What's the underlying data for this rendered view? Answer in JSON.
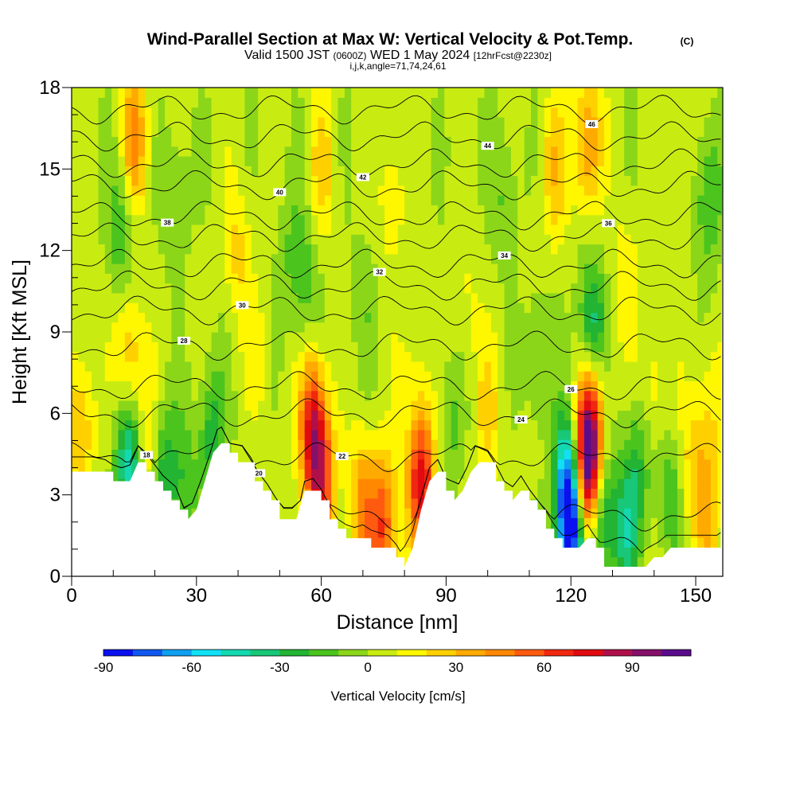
{
  "title": {
    "main": "Wind-Parallel Section at Max W: Vertical Velocity & Pot.Temp.",
    "copyright": "(C)",
    "valid_prefix": "Valid 1500 JST",
    "valid_utc": "(0600Z)",
    "valid_date": "WED 1 May 2024",
    "forecast": "[12hrFcst@2230z]",
    "indices": "i,j,k,angle=71,74,24,61"
  },
  "chart_data": {
    "type": "heatmap",
    "xlabel": "Distance [nm]",
    "ylabel": "Height [Kft MSL]",
    "xlim": [
      0,
      156.5
    ],
    "ylim": [
      0,
      18
    ],
    "x_ticks": [
      "0",
      "30",
      "60",
      "90",
      "120",
      "150"
    ],
    "y_ticks": [
      "0",
      "3",
      "6",
      "9",
      "12",
      "15",
      "18"
    ],
    "colorbar": {
      "label": "Vertical Velocity [cm/s]",
      "range": [
        -90,
        110
      ],
      "step": 10,
      "tick_labels": [
        "-90",
        "-60",
        "-30",
        "0",
        "30",
        "60",
        "90"
      ],
      "colors": [
        "#0a10f0",
        "#1058f0",
        "#10a0f0",
        "#12e0f5",
        "#14d8b0",
        "#18c878",
        "#22b432",
        "#4cc41e",
        "#8cd61a",
        "#c8ec12",
        "#fff700",
        "#ffd000",
        "#ffaa00",
        "#ff8800",
        "#ff5a10",
        "#f02810",
        "#e00a10",
        "#b0104a",
        "#84106a",
        "#5a0c8c"
      ]
    },
    "terrain_kft": [
      [
        0,
        3.9
      ],
      [
        5,
        3.9
      ],
      [
        8,
        3.8
      ],
      [
        10,
        3.6
      ],
      [
        12,
        3.5
      ],
      [
        14,
        3.6
      ],
      [
        16,
        4.3
      ],
      [
        19,
        3.8
      ],
      [
        22,
        3.2
      ],
      [
        25,
        2.8
      ],
      [
        27,
        2.0
      ],
      [
        29,
        2.2
      ],
      [
        31,
        3.0
      ],
      [
        33,
        3.9
      ],
      [
        35,
        4.9
      ],
      [
        36,
        5.0
      ],
      [
        38,
        4.4
      ],
      [
        41,
        4.3
      ],
      [
        43,
        3.8
      ],
      [
        45,
        3.3
      ],
      [
        47,
        2.9
      ],
      [
        49,
        2.4
      ],
      [
        51,
        2.0
      ],
      [
        53,
        2.0
      ],
      [
        55,
        2.3
      ],
      [
        56,
        3.0
      ],
      [
        58,
        3.1
      ],
      [
        60,
        2.7
      ],
      [
        62,
        2.1
      ],
      [
        64,
        1.6
      ],
      [
        66,
        1.4
      ],
      [
        68,
        1.3
      ],
      [
        70,
        1.4
      ],
      [
        72,
        1.2
      ],
      [
        74,
        1.1
      ],
      [
        76,
        1.0
      ],
      [
        78,
        0.6
      ],
      [
        79,
        0.3
      ],
      [
        80,
        0.5
      ],
      [
        82,
        1.2
      ],
      [
        84,
        2.4
      ],
      [
        86,
        3.5
      ],
      [
        88,
        3.8
      ],
      [
        90,
        3.1
      ],
      [
        93,
        2.9
      ],
      [
        95,
        3.5
      ],
      [
        97,
        4.3
      ],
      [
        100,
        4.1
      ],
      [
        102,
        3.6
      ],
      [
        104,
        3.0
      ],
      [
        106,
        2.8
      ],
      [
        108,
        3.2
      ],
      [
        110,
        2.7
      ],
      [
        112,
        2.3
      ],
      [
        114,
        1.9
      ],
      [
        116,
        1.4
      ],
      [
        118,
        1.0
      ],
      [
        120,
        1.0
      ],
      [
        122,
        1.2
      ],
      [
        124,
        1.4
      ],
      [
        126,
        0.9
      ],
      [
        128,
        0.3
      ],
      [
        131,
        0.3
      ],
      [
        135,
        0.3
      ],
      [
        137,
        0.3
      ],
      [
        139,
        0.5
      ],
      [
        141,
        0.7
      ],
      [
        143,
        1.0
      ],
      [
        145,
        1.0
      ],
      [
        147,
        1.0
      ],
      [
        150,
        1.0
      ],
      [
        153,
        1.0
      ],
      [
        156.5,
        1.0
      ]
    ],
    "velocity_cells": [
      {
        "x": 2,
        "ht": 5.5,
        "w": 30
      },
      {
        "x": 12,
        "ht": 13,
        "w": -25
      },
      {
        "x": 14,
        "ht": 8,
        "w": 30
      },
      {
        "x": 15,
        "ht": 16,
        "w": 40
      },
      {
        "x": 14,
        "ht": 4.2,
        "w": -55
      },
      {
        "x": 18,
        "ht": 4.5,
        "w": 25
      },
      {
        "x": 22,
        "ht": 3.8,
        "w": -30
      },
      {
        "x": 27,
        "ht": 3.4,
        "w": -20
      },
      {
        "x": 34,
        "ht": 5.2,
        "w": -30
      },
      {
        "x": 25,
        "ht": 14,
        "w": -15
      },
      {
        "x": 40,
        "ht": 12,
        "w": 20
      },
      {
        "x": 45,
        "ht": 8,
        "w": 10
      },
      {
        "x": 52,
        "ht": 12,
        "w": -10
      },
      {
        "x": 58,
        "ht": 5.5,
        "w": 70
      },
      {
        "x": 60,
        "ht": 3.3,
        "w": 55
      },
      {
        "x": 56,
        "ht": 11,
        "w": -20
      },
      {
        "x": 60,
        "ht": 15,
        "w": 20
      },
      {
        "x": 75,
        "ht": 1.8,
        "w": 55
      },
      {
        "x": 70,
        "ht": 2.5,
        "w": 40
      },
      {
        "x": 70,
        "ht": 10,
        "w": -10
      },
      {
        "x": 77,
        "ht": 14,
        "w": 15
      },
      {
        "x": 84,
        "ht": 3.5,
        "w": 75
      },
      {
        "x": 82,
        "ht": 8,
        "w": 10
      },
      {
        "x": 91,
        "ht": 5.5,
        "w": -15
      },
      {
        "x": 95,
        "ht": 10,
        "w": 10
      },
      {
        "x": 100,
        "ht": 6,
        "w": 20
      },
      {
        "x": 104,
        "ht": 14,
        "w": -15
      },
      {
        "x": 112,
        "ht": 8,
        "w": -15
      },
      {
        "x": 116,
        "ht": 15,
        "w": 25
      },
      {
        "x": 120,
        "ht": 1.8,
        "w": -85
      },
      {
        "x": 119,
        "ht": 3.5,
        "w": -50
      },
      {
        "x": 124,
        "ht": 3.9,
        "w": 105
      },
      {
        "x": 125,
        "ht": 6,
        "w": 50
      },
      {
        "x": 125,
        "ht": 9,
        "w": -45
      },
      {
        "x": 124,
        "ht": 16,
        "w": 40
      },
      {
        "x": 127,
        "ht": 2.3,
        "w": -45
      },
      {
        "x": 133,
        "ht": 1.5,
        "w": -35
      },
      {
        "x": 136,
        "ht": 4.0,
        "w": -25
      },
      {
        "x": 133,
        "ht": 11,
        "w": 15
      },
      {
        "x": 140,
        "ht": 7,
        "w": 15
      },
      {
        "x": 144,
        "ht": 3,
        "w": -20
      },
      {
        "x": 149,
        "ht": 4.2,
        "w": 20
      },
      {
        "x": 153,
        "ht": 2.2,
        "w": 25
      },
      {
        "x": 153,
        "ht": 6,
        "w": 15
      },
      {
        "x": 153,
        "ht": 14,
        "w": -25
      },
      {
        "x": 145,
        "ht": 16,
        "w": 10
      }
    ],
    "theta_contours": [
      {
        "level": 18,
        "label": "18",
        "ht_mid": 1.1
      },
      {
        "level": 20,
        "label": "20",
        "ht_mid": 2.2
      },
      {
        "level": 22,
        "label": "22",
        "ht_mid": 4.4
      },
      {
        "level": 24,
        "label": "24",
        "ht_mid": 6.0
      },
      {
        "level": 26,
        "label": "26",
        "ht_mid": 7.0
      },
      {
        "level": 28,
        "label": "28",
        "ht_mid": 8.5
      },
      {
        "level": 30,
        "label": "30",
        "ht_mid": 9.8
      },
      {
        "level": 32,
        "label": "32",
        "ht_mid": 10.7
      },
      {
        "level": 34,
        "label": "34",
        "ht_mid": 11.5
      },
      {
        "level": 36,
        "label": "36",
        "ht_mid": 12.5
      },
      {
        "level": 38,
        "label": "38",
        "ht_mid": 13.3
      },
      {
        "level": 40,
        "label": "40",
        "ht_mid": 14.4
      },
      {
        "level": 42,
        "label": "42",
        "ht_mid": 15.2
      },
      {
        "level": 44,
        "label": "44",
        "ht_mid": 16.2
      },
      {
        "level": 46,
        "label": "46",
        "ht_mid": 17.2
      }
    ]
  }
}
